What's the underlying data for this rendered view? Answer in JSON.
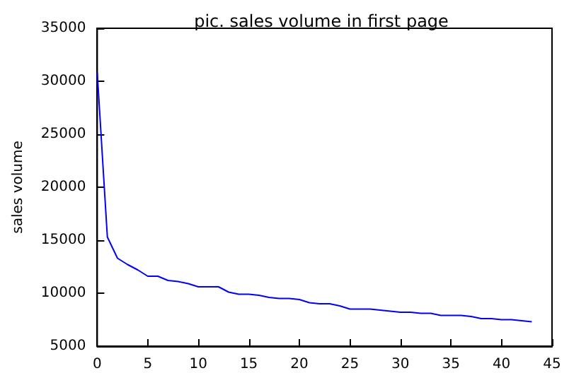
{
  "chart_data": {
    "type": "line",
    "title": "pic. sales volume in first page",
    "ylabel": "sales volume",
    "x": [
      0,
      1,
      2,
      3,
      4,
      5,
      6,
      7,
      8,
      9,
      10,
      11,
      12,
      13,
      14,
      15,
      16,
      17,
      18,
      19,
      20,
      21,
      22,
      23,
      24,
      25,
      26,
      27,
      28,
      29,
      30,
      31,
      32,
      33,
      34,
      35,
      36,
      37,
      38,
      39,
      40,
      41,
      42,
      43
    ],
    "series": [
      {
        "color": "#0000ff",
        "values": [
          30800,
          15300,
          13300,
          12700,
          12200,
          11600,
          11600,
          11200,
          11100,
          10900,
          10600,
          10600,
          10600,
          10100,
          9900,
          9900,
          9800,
          9600,
          9500,
          9500,
          9400,
          9100,
          9000,
          9000,
          8800,
          8500,
          8500,
          8500,
          8400,
          8300,
          8200,
          8200,
          8100,
          8100,
          7900,
          7900,
          7900,
          7800,
          7600,
          7600,
          7500,
          7500,
          7400,
          7300
        ]
      }
    ],
    "xlim": [
      0,
      45
    ],
    "xticks": [
      0,
      5,
      10,
      15,
      20,
      25,
      30,
      35,
      40,
      45
    ],
    "ylim": [
      5000,
      35000
    ],
    "yticks": [
      5000,
      10000,
      15000,
      20000,
      25000,
      30000,
      35000
    ],
    "grid": false,
    "marker": "none",
    "line_style": "solid"
  }
}
